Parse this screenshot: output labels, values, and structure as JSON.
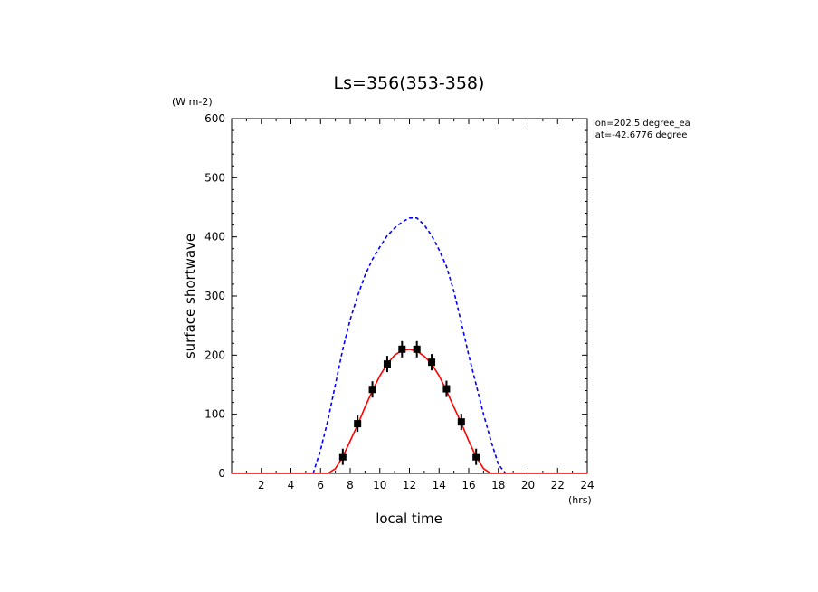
{
  "chart_data": {
    "type": "line",
    "title": "Ls=356(353-358)",
    "xlabel": "local time",
    "ylabel": "surface shortwave",
    "x_unit": "(hrs)",
    "y_unit": "(W m-2)",
    "xlim": [
      0,
      24
    ],
    "ylim": [
      0,
      600
    ],
    "x_ticks": [
      "2",
      "4",
      "6",
      "8",
      "10",
      "12",
      "14",
      "16",
      "18",
      "20",
      "22",
      "24"
    ],
    "y_ticks": [
      "0",
      "100",
      "200",
      "300",
      "400",
      "500",
      "600"
    ],
    "annotations": [
      "lon=202.5 degree_ea",
      "lat=-42.6776 degree"
    ],
    "series": [
      {
        "style": "dashed",
        "color": "#0000ff",
        "x": [
          5.5,
          6,
          6.5,
          7,
          7.5,
          8,
          8.5,
          9,
          9.5,
          10,
          10.5,
          11,
          11.5,
          12,
          12.5,
          13,
          13.5,
          14,
          14.5,
          15,
          15.5,
          16,
          16.5,
          17,
          17.5,
          18,
          18.5
        ],
        "y": [
          0,
          40,
          90,
          150,
          210,
          260,
          300,
          335,
          362,
          383,
          402,
          415,
          425,
          432,
          432,
          420,
          402,
          378,
          350,
          308,
          255,
          200,
          150,
          100,
          55,
          15,
          0
        ]
      },
      {
        "style": "solid",
        "color": "#ff0000",
        "x": [
          0,
          0.5,
          1,
          1.5,
          2,
          2.5,
          3,
          3.5,
          4,
          4.5,
          5,
          5.5,
          6,
          6.5,
          7,
          7.5,
          8,
          8.5,
          9,
          9.5,
          10,
          10.5,
          11,
          11.5,
          12,
          12.5,
          13,
          13.5,
          14,
          14.5,
          15,
          15.5,
          16,
          16.5,
          17,
          17.5,
          18,
          18.5,
          19,
          19.5,
          20,
          20.5,
          21,
          21.5,
          22,
          22.5,
          23,
          23.5,
          24
        ],
        "y": [
          0,
          0,
          0,
          0,
          0,
          0,
          0,
          0,
          0,
          0,
          0,
          0,
          0,
          0,
          8,
          28,
          55,
          82,
          112,
          140,
          165,
          185,
          200,
          208,
          210,
          207,
          198,
          185,
          165,
          140,
          112,
          85,
          55,
          28,
          8,
          0,
          0,
          0,
          0,
          0,
          0,
          0,
          0,
          0,
          0,
          0,
          0,
          0,
          0
        ]
      },
      {
        "style": "markers",
        "color": "#000000",
        "x": [
          7.5,
          8.5,
          9.5,
          10.5,
          11.5,
          12.5,
          13.5,
          14.5,
          15.5,
          16.5
        ],
        "y": [
          28,
          84,
          142,
          185,
          210,
          210,
          188,
          143,
          87,
          28
        ]
      }
    ]
  }
}
